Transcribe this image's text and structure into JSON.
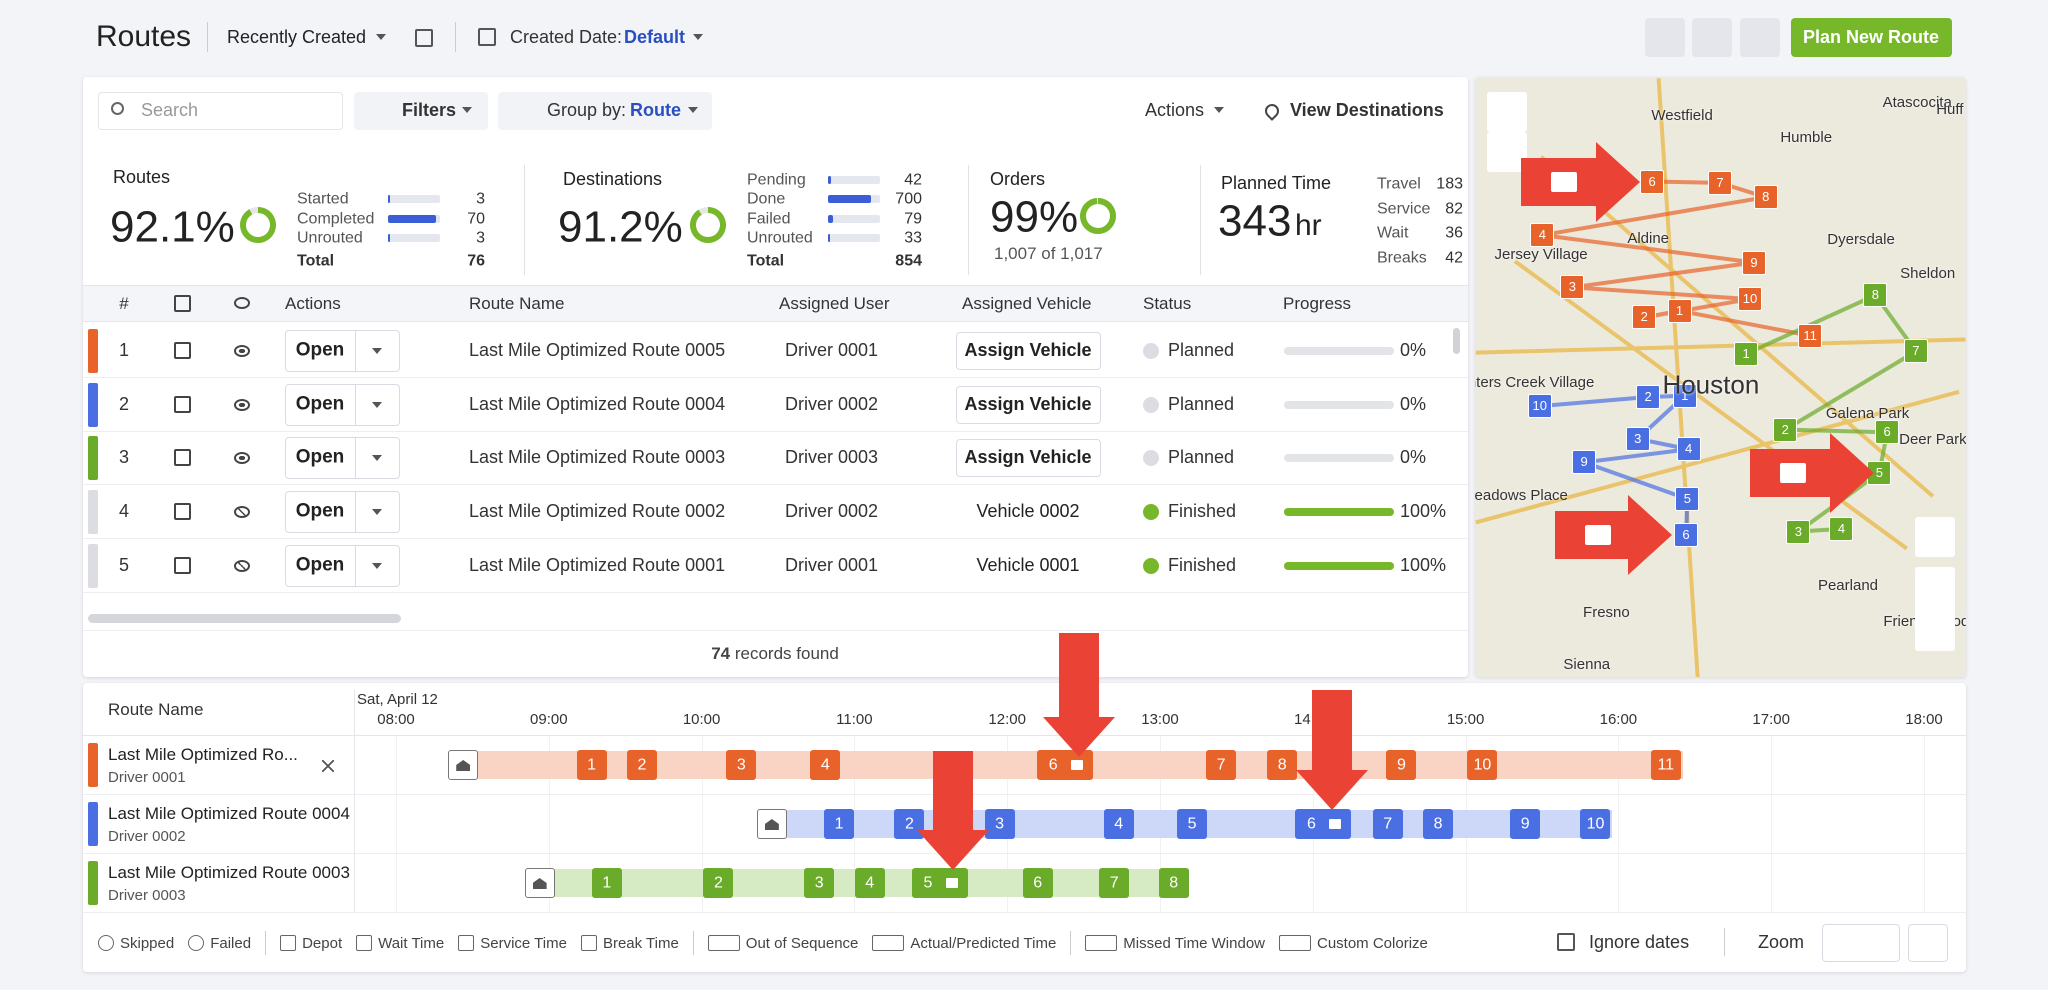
{
  "header": {
    "title": "Routes",
    "sort": "Recently Created",
    "date_label": "Created Date:",
    "date_value": "Default",
    "plan_button": "Plan New Route"
  },
  "toolbar": {
    "search": "Search",
    "filters": "Filters",
    "group_label": "Group by:",
    "group_value": "Route",
    "actions": "Actions",
    "view_destinations": "View Destinations"
  },
  "stats": {
    "routes": {
      "title": "Routes",
      "percent": 92.1,
      "percent_label": "92.1%",
      "rows": [
        {
          "label": "Started",
          "value": 3
        },
        {
          "label": "Completed",
          "value": 70
        },
        {
          "label": "Unrouted",
          "value": 3
        }
      ],
      "total_label": "Total",
      "total": 76
    },
    "destinations": {
      "title": "Destinations",
      "percent": 91.2,
      "percent_label": "91.2%",
      "rows": [
        {
          "label": "Pending",
          "value": 42
        },
        {
          "label": "Done",
          "value": 700
        },
        {
          "label": "Failed",
          "value": 79
        },
        {
          "label": "Unrouted",
          "value": 33
        }
      ],
      "total_label": "Total",
      "total": 854
    },
    "orders": {
      "title": "Orders",
      "percent": 99,
      "percent_label": "99%",
      "sub": "1,007 of 1,017"
    },
    "planned": {
      "title": "Planned Time",
      "value": 343,
      "unit": "hr",
      "rows": [
        {
          "label": "Travel",
          "value": 183
        },
        {
          "label": "Service",
          "value": 82
        },
        {
          "label": "Wait",
          "value": 36
        },
        {
          "label": "Breaks",
          "value": 42
        }
      ]
    }
  },
  "table": {
    "columns": [
      "#",
      "Actions",
      "Route Name",
      "Assigned User",
      "Assigned Vehicle",
      "Status",
      "Progress"
    ],
    "rows": [
      {
        "num": 1,
        "color": "#e8632a",
        "visible": true,
        "open": "Open",
        "name": "Last Mile Optimized Route 0005",
        "user": "Driver 0001",
        "vehicle": "Assign Vehicle",
        "vehicle_assigned": false,
        "status": "Planned",
        "progress": 0,
        "progress_label": "0%"
      },
      {
        "num": 2,
        "color": "#4a6fe3",
        "visible": true,
        "open": "Open",
        "name": "Last Mile Optimized Route 0004",
        "user": "Driver 0002",
        "vehicle": "Assign Vehicle",
        "vehicle_assigned": false,
        "status": "Planned",
        "progress": 0,
        "progress_label": "0%"
      },
      {
        "num": 3,
        "color": "#6aab2a",
        "visible": true,
        "open": "Open",
        "name": "Last Mile Optimized Route 0003",
        "user": "Driver 0003",
        "vehicle": "Assign Vehicle",
        "vehicle_assigned": false,
        "status": "Planned",
        "progress": 0,
        "progress_label": "0%"
      },
      {
        "num": 4,
        "color": "#dcdde2",
        "visible": false,
        "open": "Open",
        "name": "Last Mile Optimized Route 0002",
        "user": "Driver 0002",
        "vehicle": "Vehicle 0002",
        "vehicle_assigned": true,
        "status": "Finished",
        "progress": 100,
        "progress_label": "100%"
      },
      {
        "num": 5,
        "color": "#dcdde2",
        "visible": false,
        "open": "Open",
        "name": "Last Mile Optimized Route 0001",
        "user": "Driver 0001",
        "vehicle": "Vehicle 0001",
        "vehicle_assigned": true,
        "status": "Finished",
        "progress": 100,
        "progress_label": "100%"
      }
    ],
    "records_count": 74,
    "records_text": "records found"
  },
  "map": {
    "places": [
      "Westfield",
      "Humble",
      "Atascocita",
      "Huff",
      "Aldine",
      "Dyersdale",
      "Jersey Village",
      "Sheldon",
      "Houston",
      "Hunters Creek Village",
      "Galena Park",
      "Deer Park",
      "Meadows Place",
      "Pearland",
      "Friendswood",
      "Fresno",
      "Sienna"
    ],
    "markers": [
      {
        "label": "6",
        "route": 0
      },
      {
        "label": "7",
        "route": 0
      },
      {
        "label": "8",
        "route": 0
      },
      {
        "label": "4",
        "route": 0
      },
      {
        "label": "9",
        "route": 0
      },
      {
        "label": "3",
        "route": 0
      },
      {
        "label": "10",
        "route": 0
      },
      {
        "label": "2",
        "route": 0
      },
      {
        "label": "1",
        "route": 0
      },
      {
        "label": "11",
        "route": 0
      },
      {
        "label": "10",
        "route": 1
      },
      {
        "label": "2",
        "route": 1
      },
      {
        "label": "1",
        "route": 1
      },
      {
        "label": "3",
        "route": 1
      },
      {
        "label": "4",
        "route": 1
      },
      {
        "label": "9",
        "route": 1
      },
      {
        "label": "5",
        "route": 1
      },
      {
        "label": "6",
        "route": 1
      },
      {
        "label": "1",
        "route": 2
      },
      {
        "label": "8",
        "route": 2
      },
      {
        "label": "7",
        "route": 2
      },
      {
        "label": "2",
        "route": 2
      },
      {
        "label": "6",
        "route": 2
      },
      {
        "label": "5",
        "route": 2
      },
      {
        "label": "3",
        "route": 2
      },
      {
        "label": "4",
        "route": 2
      }
    ]
  },
  "timeline": {
    "header": "Route Name",
    "date": "Sat, April 12",
    "hours": [
      {
        "value": 8,
        "label": "08:00"
      },
      {
        "value": 9,
        "label": "09:00"
      },
      {
        "value": 10,
        "label": "10:00"
      },
      {
        "value": 11,
        "label": "11:00"
      },
      {
        "value": 12,
        "label": "12:00"
      },
      {
        "value": 13,
        "label": "13:00"
      },
      {
        "value": 14,
        "label": "14:00"
      },
      {
        "value": 15,
        "label": "15:00"
      },
      {
        "value": 16,
        "label": "16:00"
      },
      {
        "value": 17,
        "label": "17:00"
      },
      {
        "value": 18,
        "label": "18:00"
      }
    ],
    "rows": [
      {
        "name": "Last Mile Optimized Ro...",
        "driver": "Driver 0001",
        "color": "#e8632a",
        "light": "#f9d3c4",
        "depot": 8.44,
        "start": 8.5,
        "end": 16.42,
        "stops": [
          {
            "label": "1",
            "time": 9.28
          },
          {
            "label": "2",
            "time": 9.61
          },
          {
            "label": "3",
            "time": 10.26
          },
          {
            "label": "4",
            "time": 10.81
          },
          {
            "label": "6",
            "time": 12.38,
            "break": true
          },
          {
            "label": "7",
            "time": 13.4
          },
          {
            "label": "8",
            "time": 13.8
          },
          {
            "label": "9",
            "time": 14.58
          },
          {
            "label": "10",
            "time": 15.11
          },
          {
            "label": "11",
            "time": 16.31
          }
        ]
      },
      {
        "name": "Last Mile Optimized Route 0004",
        "driver": "Driver 0002",
        "color": "#4a6fe3",
        "light": "#cdd7f8",
        "depot": 10.46,
        "start": 10.52,
        "end": 15.96,
        "stops": [
          {
            "label": "1",
            "time": 10.9
          },
          {
            "label": "2",
            "time": 11.36
          },
          {
            "label": "3",
            "time": 11.95
          },
          {
            "label": "4",
            "time": 12.73
          },
          {
            "label": "5",
            "time": 13.21
          },
          {
            "label": "6",
            "time": 14.07,
            "break": true
          },
          {
            "label": "7",
            "time": 14.49
          },
          {
            "label": "8",
            "time": 14.82
          },
          {
            "label": "9",
            "time": 15.39
          },
          {
            "label": "10",
            "time": 15.85
          }
        ]
      },
      {
        "name": "Last Mile Optimized Route 0003",
        "driver": "Driver 0003",
        "color": "#6aab2a",
        "light": "#d6ebc4",
        "depot": 8.94,
        "start": 9.0,
        "end": 13.19,
        "stops": [
          {
            "label": "1",
            "time": 9.38
          },
          {
            "label": "2",
            "time": 10.11
          },
          {
            "label": "3",
            "time": 10.77
          },
          {
            "label": "4",
            "time": 11.1
          },
          {
            "label": "5",
            "time": 11.56,
            "break": true
          },
          {
            "label": "6",
            "time": 12.2
          },
          {
            "label": "7",
            "time": 12.7
          },
          {
            "label": "8",
            "time": 13.09
          }
        ]
      }
    ]
  },
  "legend": {
    "items": [
      "Skipped",
      "Failed",
      "Depot",
      "Wait Time",
      "Service Time",
      "Break Time",
      "Out of Sequence",
      "Actual/Predicted Time",
      "Missed Time Window",
      "Custom Colorize"
    ],
    "ignore_dates": "Ignore dates",
    "zoom": "Zoom"
  }
}
